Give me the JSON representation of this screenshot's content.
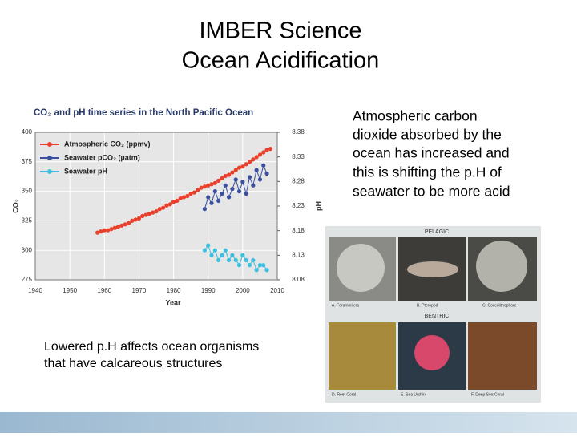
{
  "slide": {
    "title": [
      "IMBER Science",
      "Ocean Acidification"
    ],
    "right_text": [
      "Atmospheric carbon",
      "dioxide absorbed by the",
      "ocean has increased and",
      "this is shifting the p.H of",
      "seawater to be more acid"
    ],
    "left_text": [
      "Lowered p.H affects ocean organisms",
      "that have calcareous structures"
    ],
    "figure": {
      "sections": [
        "PELAGIC",
        "BENTHIC"
      ],
      "captions": [
        "A. Foraminifera",
        "B. Pteropod",
        "C. Coccolithophore",
        "D. Reef Coral",
        "E. Sea Urchin",
        "F. Deep Sea Coral"
      ]
    }
  },
  "chart_data": {
    "type": "line",
    "title": "CO₂ and pH time series in the North Pacific Ocean",
    "x_label": "Year",
    "y_label": "CO₂",
    "y2_label": "pH",
    "xlim": [
      1940,
      2010
    ],
    "xticks": [
      1940,
      1950,
      1960,
      1970,
      1980,
      1990,
      2000,
      2010
    ],
    "ylim": [
      275,
      400
    ],
    "yticks": [
      275,
      300,
      325,
      350,
      375,
      400
    ],
    "y2lim": [
      8.08,
      8.38
    ],
    "y2ticks": [
      8.08,
      8.13,
      8.18,
      8.23,
      8.28,
      8.33,
      8.38
    ],
    "grid": true,
    "series": [
      {
        "name": "Atmospheric CO₂ (ppmv)",
        "color": "#e8402a",
        "x": [
          1958,
          1959,
          1960,
          1961,
          1962,
          1963,
          1964,
          1965,
          1966,
          1967,
          1968,
          1969,
          1970,
          1971,
          1972,
          1973,
          1974,
          1975,
          1976,
          1977,
          1978,
          1979,
          1980,
          1981,
          1982,
          1983,
          1984,
          1985,
          1986,
          1987,
          1988,
          1989,
          1990,
          1991,
          1992,
          1993,
          1994,
          1995,
          1996,
          1997,
          1998,
          1999,
          2000,
          2001,
          2002,
          2003,
          2004,
          2005,
          2006,
          2007,
          2008
        ],
        "values": [
          315,
          316,
          317,
          317,
          318,
          319,
          320,
          321,
          322,
          323,
          325,
          326,
          327,
          329,
          330,
          331,
          332,
          333,
          335,
          336,
          338,
          339,
          341,
          342,
          344,
          345,
          346,
          348,
          349,
          351,
          353,
          354,
          355,
          356,
          357,
          359,
          361,
          363,
          364,
          366,
          368,
          370,
          371,
          373,
          375,
          377,
          379,
          381,
          383,
          385,
          386
        ]
      },
      {
        "name": "Seawater pCO₂ (µatm)",
        "color": "#3a4fa0",
        "x": [
          1989,
          1990,
          1991,
          1992,
          1993,
          1994,
          1995,
          1996,
          1997,
          1998,
          1999,
          2000,
          2001,
          2002,
          2003,
          2004,
          2005,
          2006,
          2007
        ],
        "values": [
          335,
          345,
          340,
          350,
          342,
          348,
          355,
          345,
          352,
          360,
          350,
          358,
          348,
          362,
          355,
          368,
          360,
          372,
          365
        ]
      },
      {
        "name": "Seawater pH",
        "color": "#3cc0e0",
        "axis": "y2",
        "x": [
          1989,
          1990,
          1991,
          1992,
          1993,
          1994,
          1995,
          1996,
          1997,
          1998,
          1999,
          2000,
          2001,
          2002,
          2003,
          2004,
          2005,
          2006,
          2007
        ],
        "values": [
          8.14,
          8.15,
          8.13,
          8.14,
          8.12,
          8.13,
          8.14,
          8.12,
          8.13,
          8.12,
          8.11,
          8.13,
          8.12,
          8.11,
          8.12,
          8.1,
          8.11,
          8.11,
          8.1
        ]
      }
    ]
  }
}
